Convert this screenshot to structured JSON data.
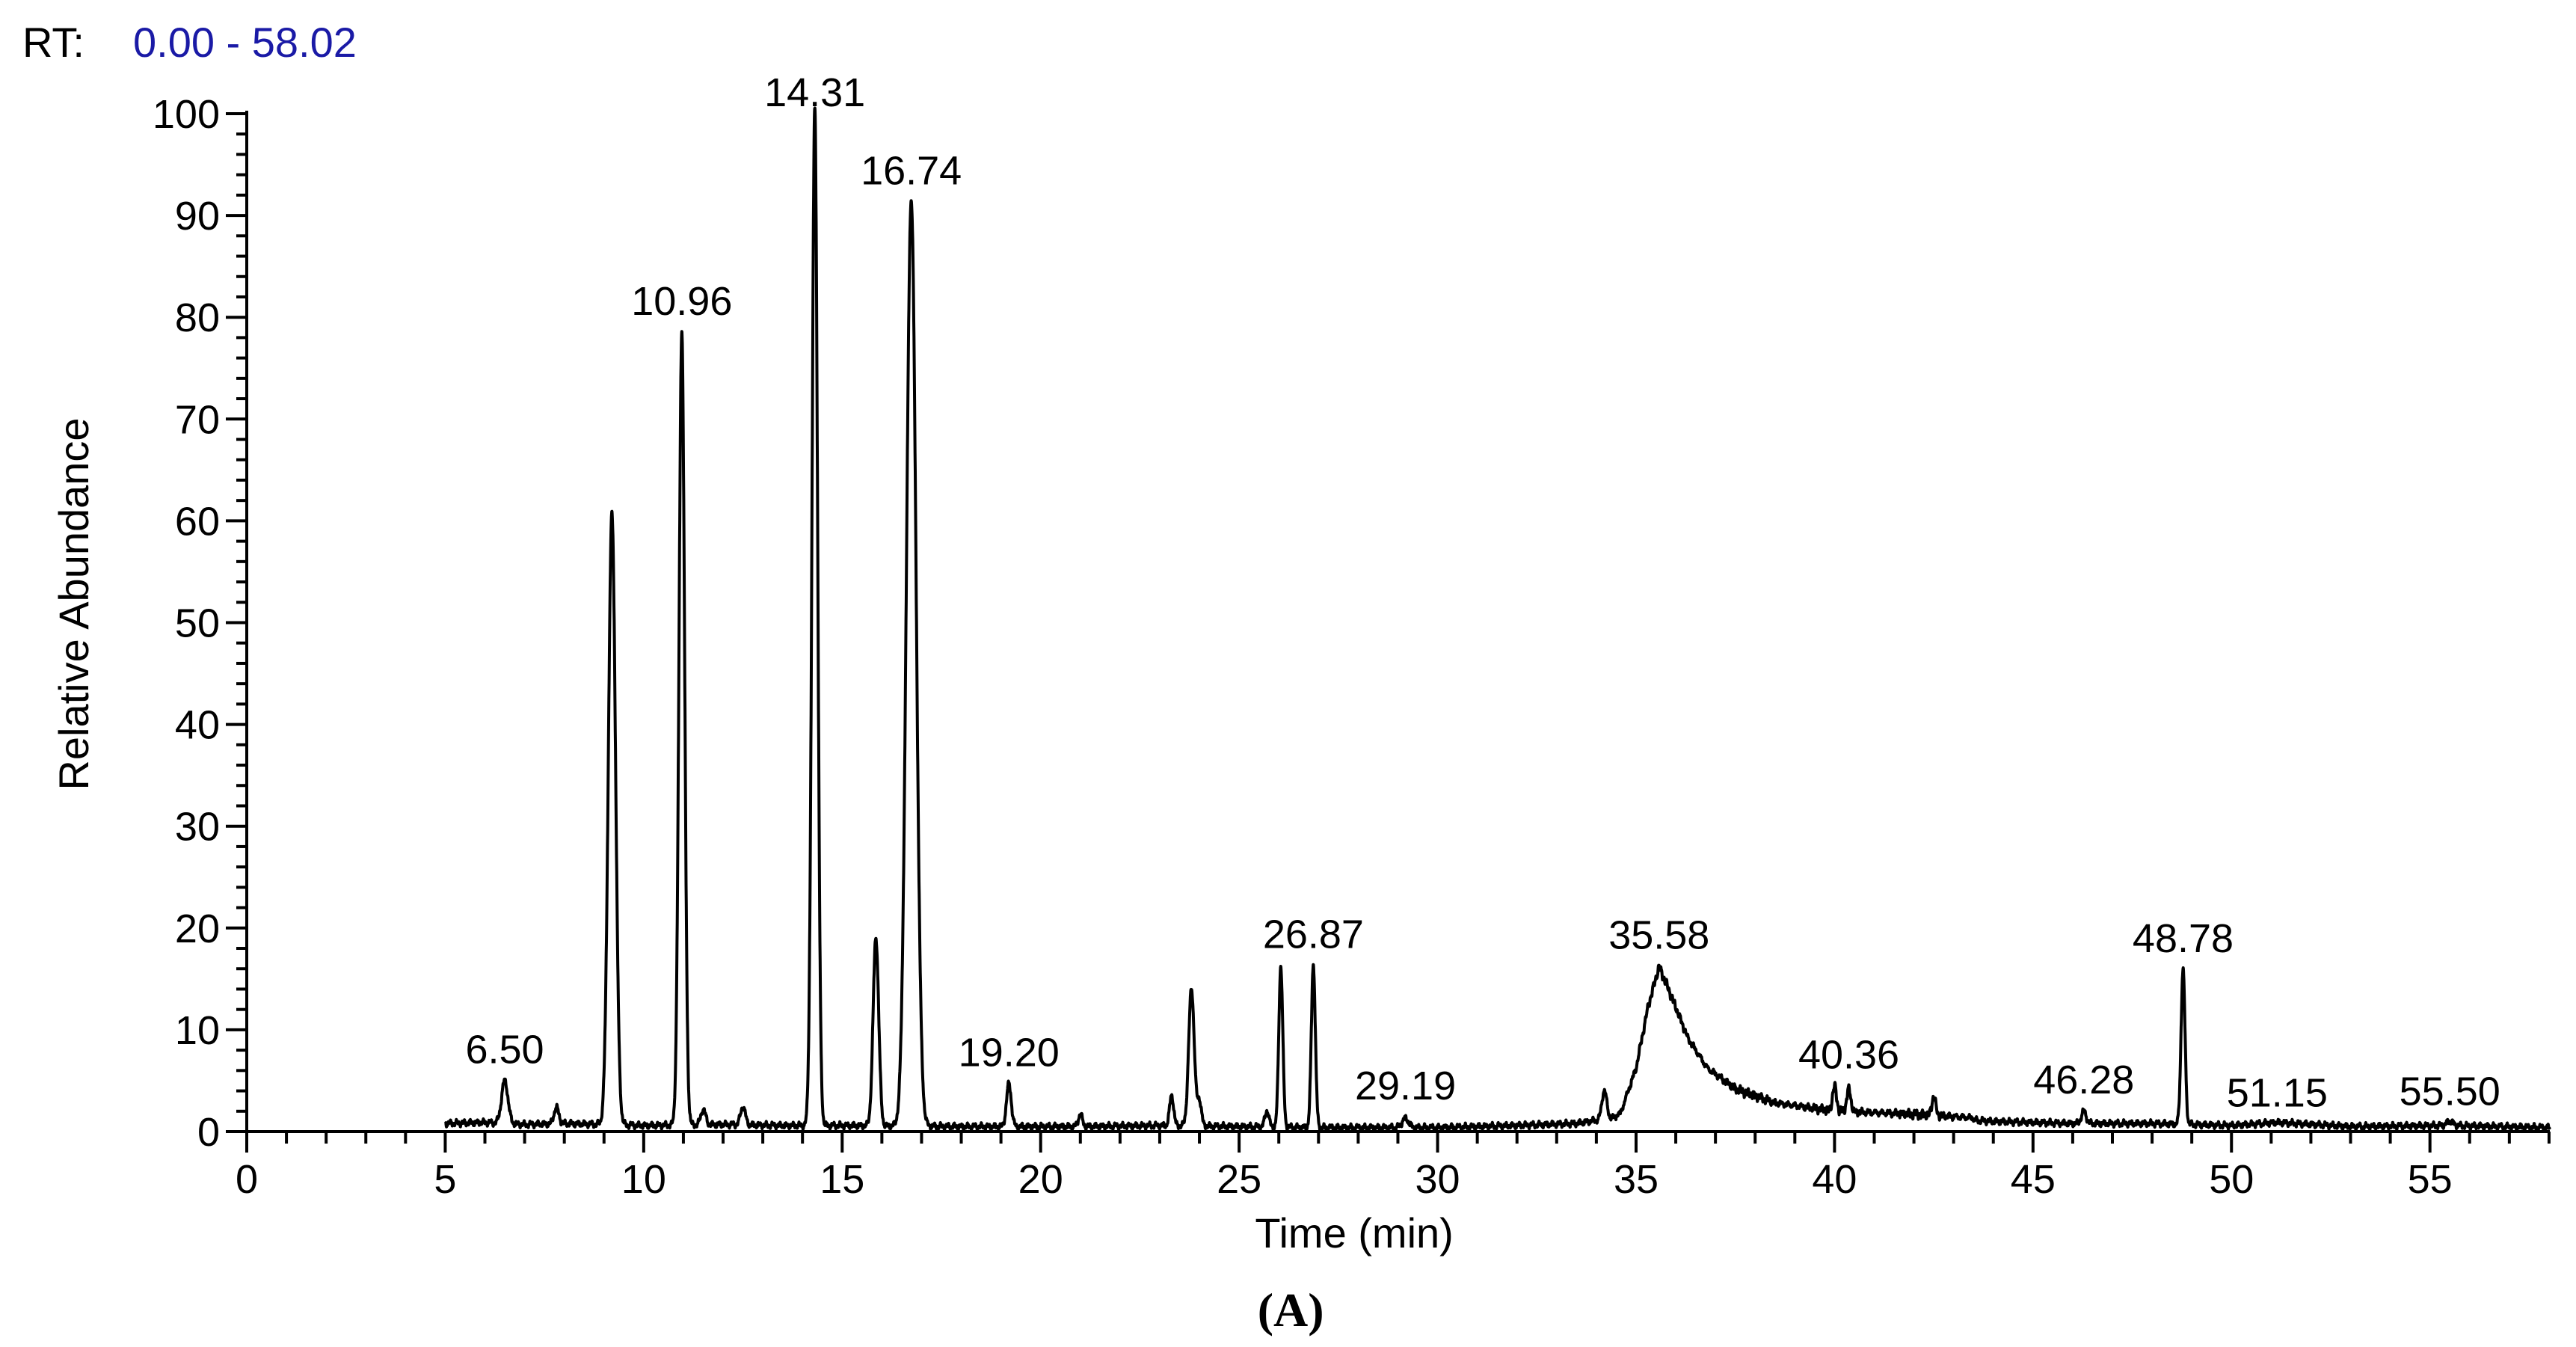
{
  "header": {
    "rt_label": "RT:",
    "rt_range": "0.00 - 58.02"
  },
  "figure_label": "(A)",
  "colors": {
    "trace": "#000000",
    "rt_range": "#1a1aa6"
  },
  "chart_data": {
    "type": "line",
    "title": "",
    "xlabel": "Time (min)",
    "ylabel": "Relative Abundance",
    "xlim": [
      0,
      58.02
    ],
    "ylim": [
      0,
      100
    ],
    "x_ticks_major": [
      0,
      5,
      10,
      15,
      20,
      25,
      30,
      35,
      40,
      45,
      50,
      55
    ],
    "x_ticks_minor_step": 1,
    "y_ticks_major": [
      0,
      10,
      20,
      30,
      40,
      50,
      60,
      70,
      80,
      90,
      100
    ],
    "y_ticks_minor_step": 2,
    "baseline": [
      [
        5.0,
        0.8
      ],
      [
        6.0,
        0.9
      ],
      [
        7.0,
        0.7
      ],
      [
        8.0,
        0.8
      ],
      [
        10.0,
        0.6
      ],
      [
        12.0,
        0.7
      ],
      [
        13.5,
        0.6
      ],
      [
        15.0,
        0.6
      ],
      [
        18.0,
        0.5
      ],
      [
        21.0,
        0.5
      ],
      [
        23.0,
        0.6
      ],
      [
        27.0,
        0.4
      ],
      [
        30.0,
        0.4
      ],
      [
        32.0,
        0.6
      ],
      [
        33.5,
        0.8
      ],
      [
        34.6,
        1.5
      ],
      [
        35.0,
        6.0
      ],
      [
        35.3,
        12.0
      ],
      [
        35.58,
        16.0
      ],
      [
        35.9,
        13.0
      ],
      [
        36.3,
        9.0
      ],
      [
        36.8,
        6.0
      ],
      [
        37.5,
        4.0
      ],
      [
        38.5,
        2.6
      ],
      [
        40.0,
        1.8
      ],
      [
        42.0,
        1.5
      ],
      [
        44.0,
        1.0
      ],
      [
        46.0,
        0.8
      ],
      [
        48.0,
        0.8
      ],
      [
        50.0,
        0.6
      ],
      [
        51.15,
        0.9
      ],
      [
        53.0,
        0.5
      ],
      [
        55.5,
        0.6
      ],
      [
        58.02,
        0.4
      ]
    ],
    "peaks": [
      {
        "rt": 6.5,
        "height": 4.2,
        "width": 0.08,
        "label": "6.50"
      },
      {
        "rt": 7.8,
        "height": 1.6,
        "width": 0.06
      },
      {
        "rt": 9.2,
        "height": 60,
        "width": 0.09
      },
      {
        "rt": 10.96,
        "height": 78,
        "width": 0.07,
        "label": "10.96"
      },
      {
        "rt": 11.5,
        "height": 1.5,
        "width": 0.06
      },
      {
        "rt": 12.5,
        "height": 1.8,
        "width": 0.06
      },
      {
        "rt": 14.31,
        "height": 100,
        "width": 0.07,
        "label": "14.31"
      },
      {
        "rt": 15.85,
        "height": 18.5,
        "width": 0.07
      },
      {
        "rt": 16.74,
        "height": 91,
        "width": 0.12,
        "label": "16.74"
      },
      {
        "rt": 19.2,
        "height": 4.2,
        "width": 0.06,
        "label": "19.20"
      },
      {
        "rt": 21.0,
        "height": 1.2,
        "width": 0.05
      },
      {
        "rt": 23.3,
        "height": 3.0,
        "width": 0.05
      },
      {
        "rt": 23.8,
        "height": 13.5,
        "width": 0.07
      },
      {
        "rt": 24.0,
        "height": 2.5,
        "width": 0.05
      },
      {
        "rt": 25.7,
        "height": 1.6,
        "width": 0.05
      },
      {
        "rt": 26.05,
        "height": 15.8,
        "width": 0.05
      },
      {
        "rt": 26.87,
        "height": 16.0,
        "width": 0.05,
        "label": "26.87"
      },
      {
        "rt": 29.19,
        "height": 0.9,
        "width": 0.08,
        "label": "29.19"
      },
      {
        "rt": 34.2,
        "height": 2.8,
        "width": 0.06
      },
      {
        "rt": 35.58,
        "height": 0,
        "width": 0.1,
        "label": "35.58"
      },
      {
        "rt": 40.0,
        "height": 2.4,
        "width": 0.05
      },
      {
        "rt": 40.36,
        "height": 2.2,
        "width": 0.05,
        "label": "40.36"
      },
      {
        "rt": 42.5,
        "height": 1.8,
        "width": 0.05
      },
      {
        "rt": 46.28,
        "height": 1.2,
        "width": 0.06,
        "label": "46.28"
      },
      {
        "rt": 48.78,
        "height": 15.2,
        "width": 0.05,
        "label": "48.78"
      },
      {
        "rt": 51.15,
        "height": 0,
        "width": 0.1,
        "label": "51.15"
      },
      {
        "rt": 55.5,
        "height": 0.4,
        "width": 0.08,
        "label": "55.50"
      }
    ]
  }
}
